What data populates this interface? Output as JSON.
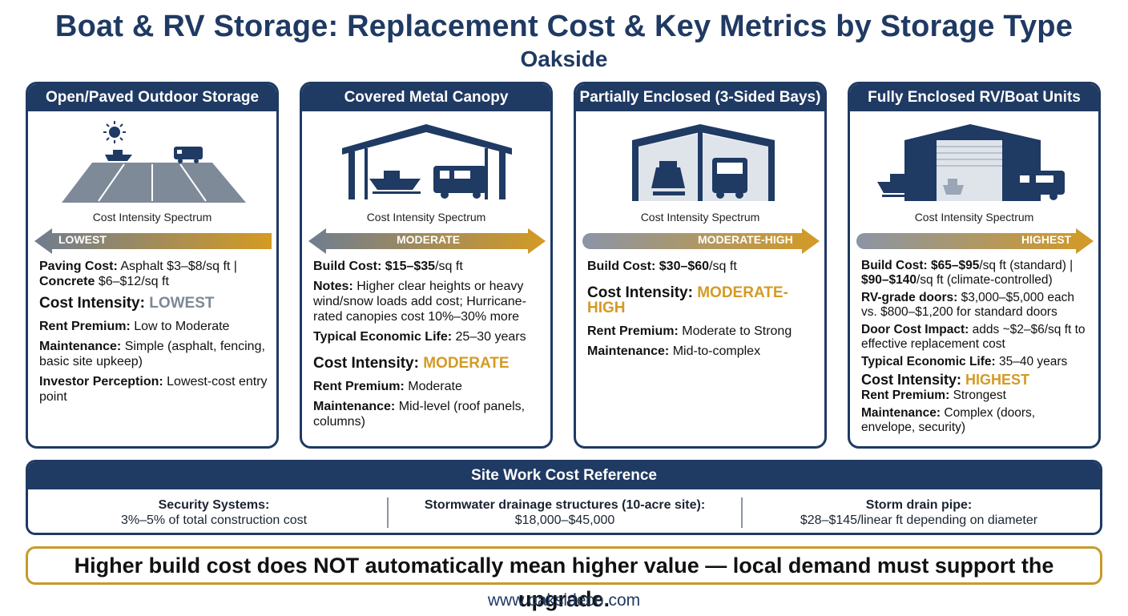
{
  "title": "Boat & RV Storage: Replacement Cost & Key Metrics by Storage Type",
  "subtitle": "Oakside",
  "spectrum_label": "Cost Intensity Spectrum",
  "cards": [
    {
      "header": "Open/Paved Outdoor Storage",
      "arrow_label": "LOWEST",
      "lines": [
        {
          "label": "Paving Cost:",
          "value": "Asphalt $3–$8/sq ft |"
        },
        {
          "label": "Concrete",
          "value": "$6–$12/sq ft"
        },
        {
          "label": "Cost Intensity:",
          "value": "LOWEST"
        },
        {
          "label": "Rent Premium:",
          "value": "Low to Moderate"
        },
        {
          "label": "Maintenance:",
          "value": "Simple (asphalt, fencing, basic site upkeep)"
        },
        {
          "label": "Investor Perception:",
          "value": "Lowest-cost entry point"
        }
      ]
    },
    {
      "header": "Covered Metal Canopy",
      "arrow_label": "MODERATE",
      "lines": [
        {
          "label": "Build Cost:",
          "value_bold": "$15–$35",
          "value": "/sq ft"
        },
        {
          "label": "Notes:",
          "value": "Higher clear heights or heavy wind/snow loads add cost; Hurricane-rated canopies cost 10%–30% more"
        },
        {
          "label": "Typical Economic Life:",
          "value": "25–30 years"
        },
        {
          "label": "Cost Intensity:",
          "value": "MODERATE"
        },
        {
          "label": "Rent Premium:",
          "value": "Moderate"
        },
        {
          "label": "Maintenance:",
          "value": "Mid-level (roof panels, columns)"
        }
      ]
    },
    {
      "header": "Partially Enclosed (3-Sided Bays)",
      "arrow_label": "MODERATE-HIGH",
      "lines": [
        {
          "label": "Build Cost:",
          "value_bold": "$30–$60",
          "value": "/sq ft"
        },
        {
          "label": "Cost Intensity:",
          "value": "MODERATE-HIGH"
        },
        {
          "label": "Rent Premium:",
          "value": "Moderate to Strong"
        },
        {
          "label": "Maintenance:",
          "value": "Mid-to-complex"
        }
      ]
    },
    {
      "header": "Fully Enclosed RV/Boat Units",
      "arrow_label": "HIGHEST",
      "lines": [
        {
          "label": "Build Cost:",
          "value_bold": "$65–$95",
          "value": "/sq ft (standard) |"
        },
        {
          "value_bold": "$90–$140",
          "value": "/sq ft (climate-controlled)"
        },
        {
          "label": "RV-grade doors:",
          "value": "$3,000–$5,000 each vs. $800–$1,200 for standard doors"
        },
        {
          "label": "Door Cost Impact:",
          "value": "adds ~$2–$6/sq ft to effective replacement cost"
        },
        {
          "label": "Typical Economic Life:",
          "value": "35–40 years"
        },
        {
          "label": "Cost Intensity:",
          "value": "HIGHEST"
        },
        {
          "label": "Rent Premium:",
          "value": "Strongest"
        },
        {
          "label": "Maintenance:",
          "value": "Complex (doors, envelope, security)"
        }
      ]
    }
  ],
  "site_work": {
    "header": "Site Work Cost Reference",
    "items": [
      {
        "label": "Security Systems:",
        "value": "3%–5% of total construction cost"
      },
      {
        "label": "Stormwater drainage structures (10-acre site):",
        "value": "$18,000–$45,000"
      },
      {
        "label": "Storm drain pipe:",
        "value": "$28–$145/linear ft depending on diameter"
      }
    ]
  },
  "callout": "Higher build cost does NOT automatically mean higher value — local demand must support the upgrade.",
  "url": "www.oaksideco.com",
  "colors": {
    "navy": "#1f3a63",
    "gold": "#d49a24",
    "gray": "#7d8896"
  },
  "icons": [
    "sun-icon",
    "boat-icon",
    "rv-icon",
    "canopy-icon",
    "three-sided-bay-icon",
    "enclosed-building-icon"
  ]
}
